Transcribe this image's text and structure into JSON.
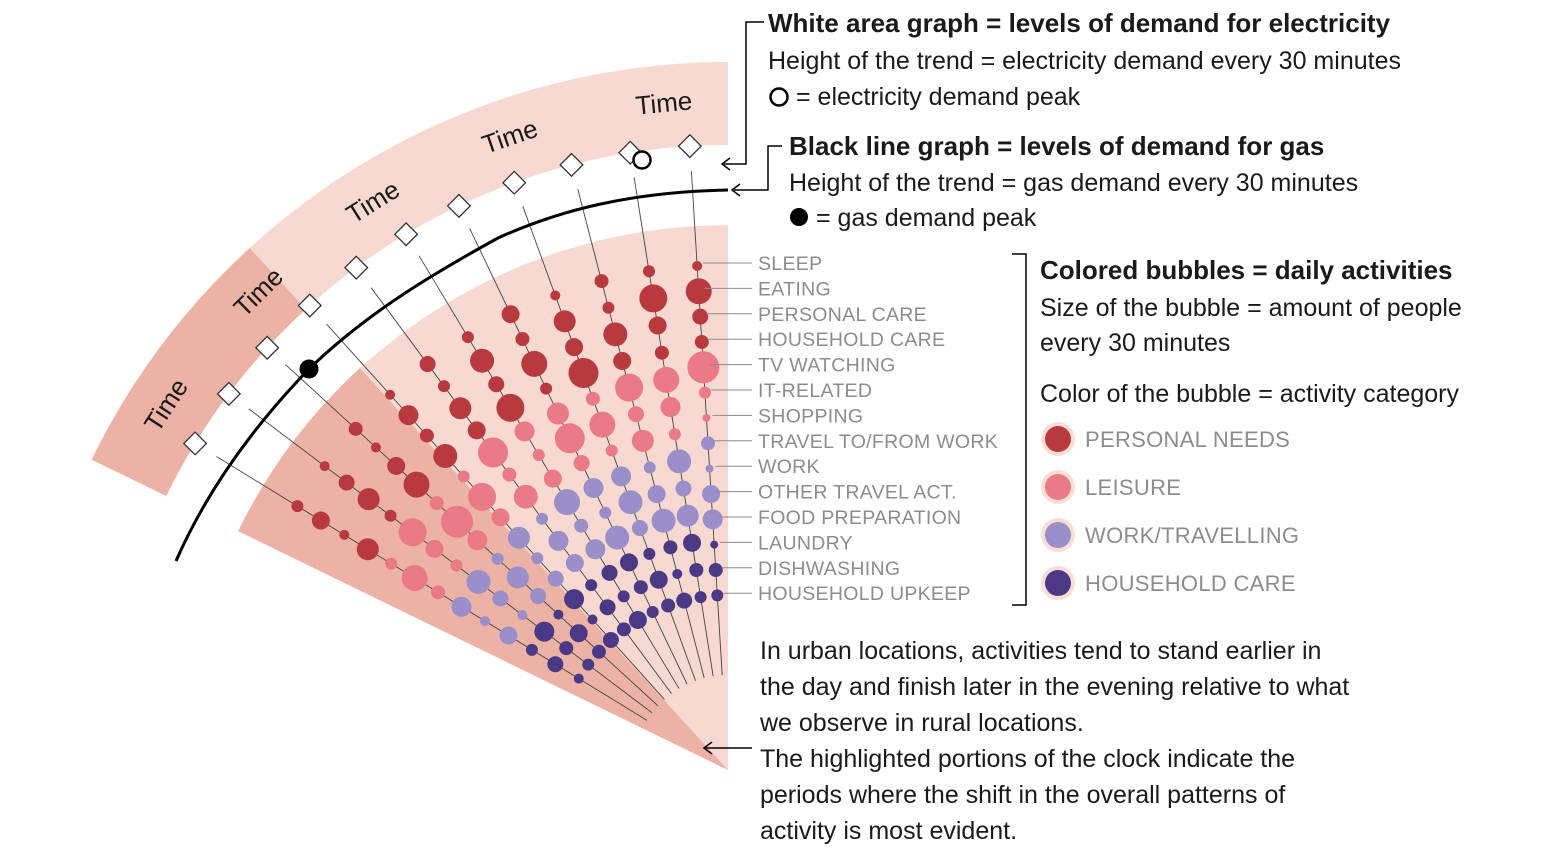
{
  "legend": {
    "electricity": {
      "title": "White area graph =  levels of demand for electricity",
      "line1": "Height of the trend = electricity demand every 30 minutes",
      "line2": "= electricity demand peak"
    },
    "gas": {
      "title": "Black line graph =  levels of demand for gas",
      "line1": "Height of the trend = gas demand every 30 minutes",
      "line2": "= gas demand peak"
    },
    "bubbles": {
      "title": "Colored bubbles = daily activities",
      "line1": "Size of the bubble = amount of people",
      "line2": "every 30 minutes",
      "line3": "Color of the bubble = activity category"
    }
  },
  "categories": [
    {
      "label": "PERSONAL NEEDS",
      "color": "#b83a3e"
    },
    {
      "label": "LEISURE",
      "color": "#e97a86"
    },
    {
      "label": "WORK/TRAVELLING",
      "color": "#9b8fc9"
    },
    {
      "label": "HOUSEHOLD CARE",
      "color": "#4a3a86"
    }
  ],
  "activities": [
    "SLEEP",
    "EATING",
    "PERSONAL CARE",
    "HOUSEHOLD CARE",
    "TV WATCHING",
    "IT-RELATED",
    "SHOPPING",
    "TRAVEL TO/FROM WORK",
    "WORK",
    "OTHER TRAVEL ACT.",
    "FOOD PREPARATION",
    "LAUNDRY",
    "DISHWASHING",
    "HOUSEHOLD UPKEEP"
  ],
  "time_label": "Time",
  "note": {
    "lines": [
      "In urban locations, activities tend to stand earlier in",
      "the day and finish later in the evening relative to what",
      "we observe in rural locations.",
      "The highlighted portions of the clock indicate the",
      "periods where the shift in the overall patterns of",
      "activity is most evident."
    ]
  },
  "colors": {
    "outer_band": "#f8d9d2",
    "highlight_band": "#ecb2a5",
    "gas_line": "#000000"
  }
}
